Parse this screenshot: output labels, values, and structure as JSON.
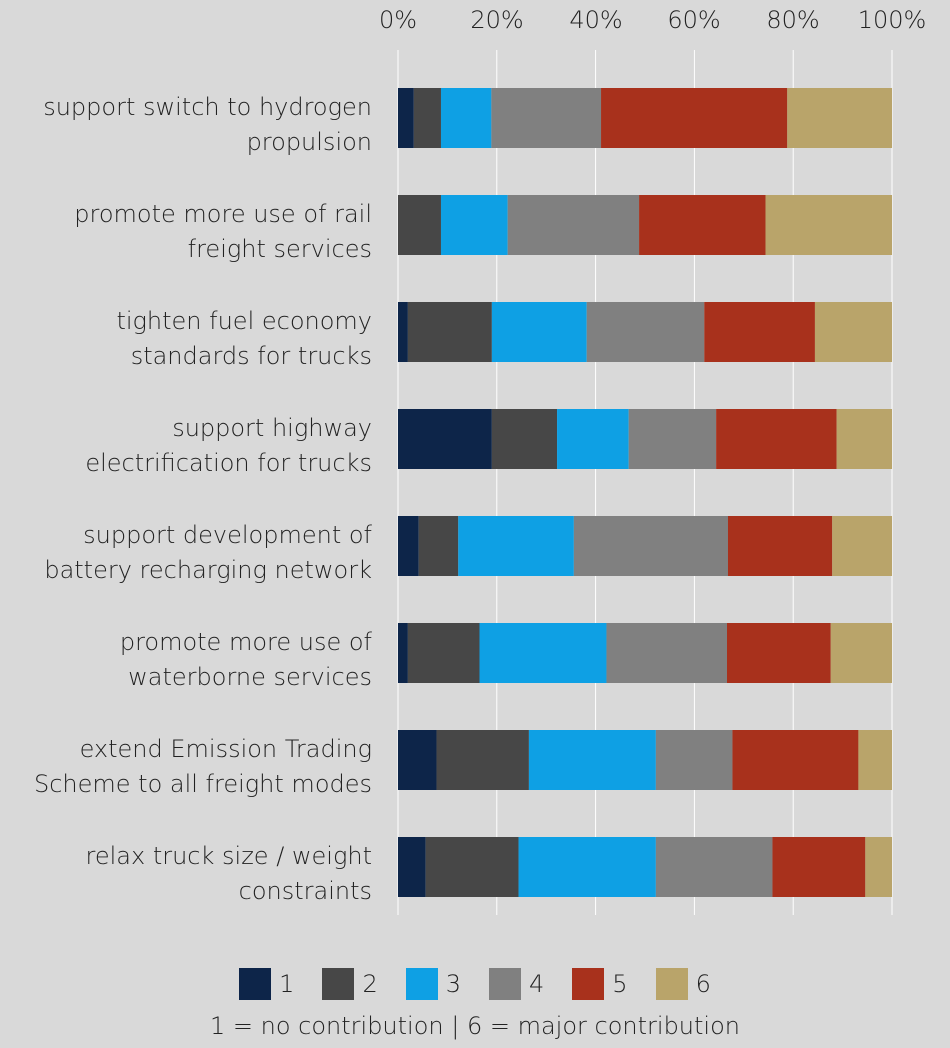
{
  "chart_data": {
    "type": "bar",
    "orientation": "horizontal",
    "stacked": true,
    "percent": true,
    "title": "",
    "xlabel": "",
    "ylabel": "",
    "xlim": [
      0,
      100
    ],
    "x_ticks": [
      "0%",
      "20%",
      "40%",
      "60%",
      "80%",
      "100%"
    ],
    "x_axis_position": "top",
    "grid": "vertical",
    "legend_position": "bottom",
    "categories": [
      "support switch to hydrogen propulsion",
      "promote more use of rail freight services",
      "tighten fuel economy standards for trucks",
      "support highway electrification for trucks",
      "support development of battery recharging network",
      "promote more use of waterborne services",
      "extend Emission Trading Scheme to all freight modes",
      "relax truck size / weight constraints"
    ],
    "category_lines": [
      [
        "support switch to hydrogen",
        "propulsion"
      ],
      [
        "promote more use of rail",
        "freight services"
      ],
      [
        "tighten fuel economy",
        "standards for trucks"
      ],
      [
        "support highway",
        "electrification for trucks"
      ],
      [
        "support development of",
        "battery recharging network"
      ],
      [
        "promote more use of",
        "waterborne services"
      ],
      [
        "extend Emission Trading",
        "Scheme to all freight modes"
      ],
      [
        "relax truck size / weight",
        "constraints"
      ]
    ],
    "series": [
      {
        "name": "1",
        "color": "#0d2549",
        "values": [
          3.2,
          0,
          2.0,
          19.0,
          4.2,
          2.0,
          7.8,
          5.6
        ]
      },
      {
        "name": "2",
        "color": "#474747",
        "values": [
          5.5,
          8.7,
          17.0,
          13.2,
          8.0,
          14.5,
          18.7,
          18.8
        ]
      },
      {
        "name": "3",
        "color": "#0ea0e4",
        "values": [
          10.2,
          13.5,
          19.2,
          14.5,
          23.4,
          25.7,
          25.7,
          27.8
        ]
      },
      {
        "name": "4",
        "color": "#808080",
        "values": [
          22.2,
          26.6,
          23.8,
          17.7,
          31.2,
          24.4,
          15.5,
          23.6
        ]
      },
      {
        "name": "5",
        "color": "#a8311c",
        "values": [
          37.7,
          25.6,
          22.4,
          24.4,
          21.1,
          21.0,
          25.5,
          18.8
        ]
      },
      {
        "name": "6",
        "color": "#b9a46a",
        "values": [
          21.2,
          25.6,
          15.6,
          11.2,
          12.1,
          12.4,
          6.8,
          5.4
        ]
      }
    ],
    "note": "1 = no contribution  |  6 = major contribution"
  }
}
